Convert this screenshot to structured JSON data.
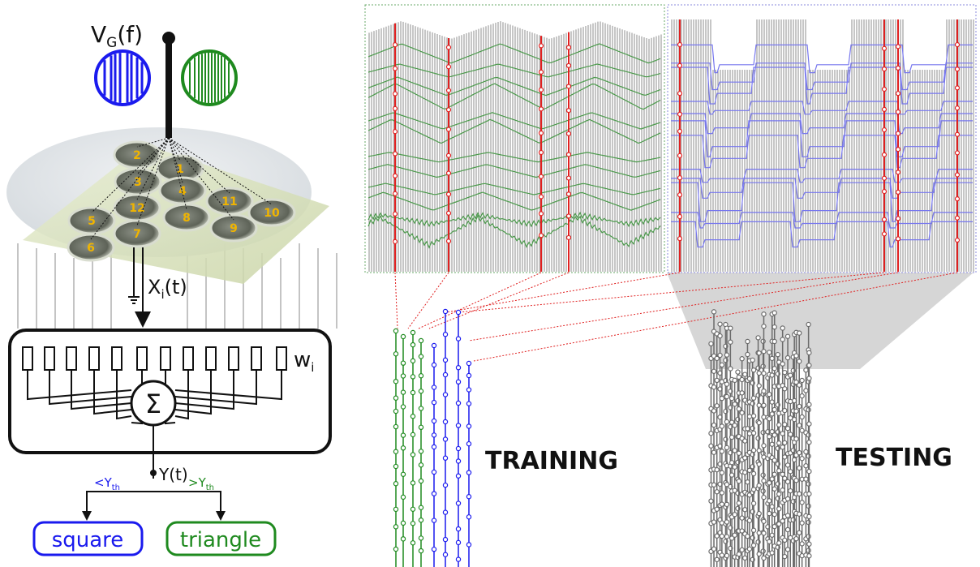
{
  "labels": {
    "gate_voltage_main": "V",
    "gate_voltage_sub": "G",
    "gate_voltage_tail": "(f)",
    "input_main": "X",
    "input_sub": "i",
    "input_tail": "(t)",
    "weights_main": "w",
    "weights_sub": "i",
    "sum_symbol": "Σ",
    "output": "Y(t)",
    "below_threshold_prefix": "<Y",
    "above_threshold_prefix": ">Y",
    "threshold_sub": "th",
    "class_square": "square",
    "class_triangle": "triangle",
    "training": "TRAINING",
    "testing": "TESTING"
  },
  "electrodes": [
    "1",
    "2",
    "3",
    "4",
    "5",
    "6",
    "7",
    "8",
    "9",
    "10",
    "11",
    "12"
  ],
  "colors": {
    "square": "#1a1aee",
    "triangle": "#1f8a1f",
    "square_trace": "#7777ee",
    "triangle_trace": "#4c9a4c",
    "sample_line": "#e02020",
    "testing": "#6b6b6b",
    "electrode_label": "#f0b400",
    "plate": "#dfe6c8"
  }
}
